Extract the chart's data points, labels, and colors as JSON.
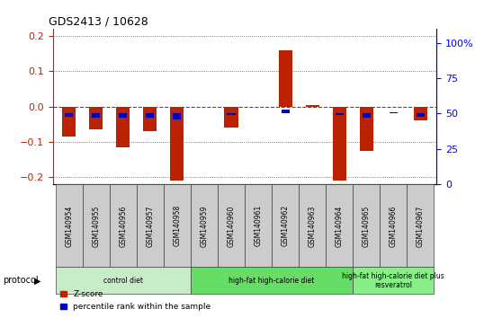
{
  "title": "GDS2413 / 10628",
  "samples": [
    "GSM140954",
    "GSM140955",
    "GSM140956",
    "GSM140957",
    "GSM140958",
    "GSM140959",
    "GSM140960",
    "GSM140961",
    "GSM140962",
    "GSM140963",
    "GSM140964",
    "GSM140965",
    "GSM140966",
    "GSM140967"
  ],
  "zscore": [
    -0.085,
    -0.065,
    -0.115,
    -0.07,
    -0.21,
    -0.002,
    -0.06,
    0.0,
    0.16,
    0.005,
    -0.21,
    -0.125,
    0.0,
    -0.04
  ],
  "percentile_rank": [
    48,
    47,
    47,
    47,
    46,
    50,
    49,
    50,
    53,
    50,
    49,
    47,
    51,
    48
  ],
  "zscore_color": "#bb2200",
  "prank_color": "#0000bb",
  "ylim_left": [
    -0.22,
    0.22
  ],
  "ylim_right": [
    0,
    110
  ],
  "yticks_left": [
    -0.2,
    -0.1,
    0.0,
    0.1,
    0.2
  ],
  "yticks_right": [
    0,
    25,
    50,
    75,
    100
  ],
  "ytick_labels_right": [
    "0",
    "25",
    "50",
    "75",
    "100%"
  ],
  "groups": [
    {
      "label": "control diet",
      "start": 0,
      "end": 4,
      "color": "#c8ecc8"
    },
    {
      "label": "high-fat high-calorie diet",
      "start": 5,
      "end": 10,
      "color": "#66dd66"
    },
    {
      "label": "high-fat high-calorie diet plus\nresveratrol",
      "start": 11,
      "end": 13,
      "color": "#88ee88"
    }
  ],
  "protocol_label": "protocol",
  "legend_zscore": "Z-score",
  "legend_prank": "percentile rank within the sample",
  "bar_width": 0.5,
  "prank_bar_width": 0.3,
  "background_color": "#ffffff",
  "tick_label_area_color": "#cccccc",
  "sample_label_color": "#cccccc"
}
